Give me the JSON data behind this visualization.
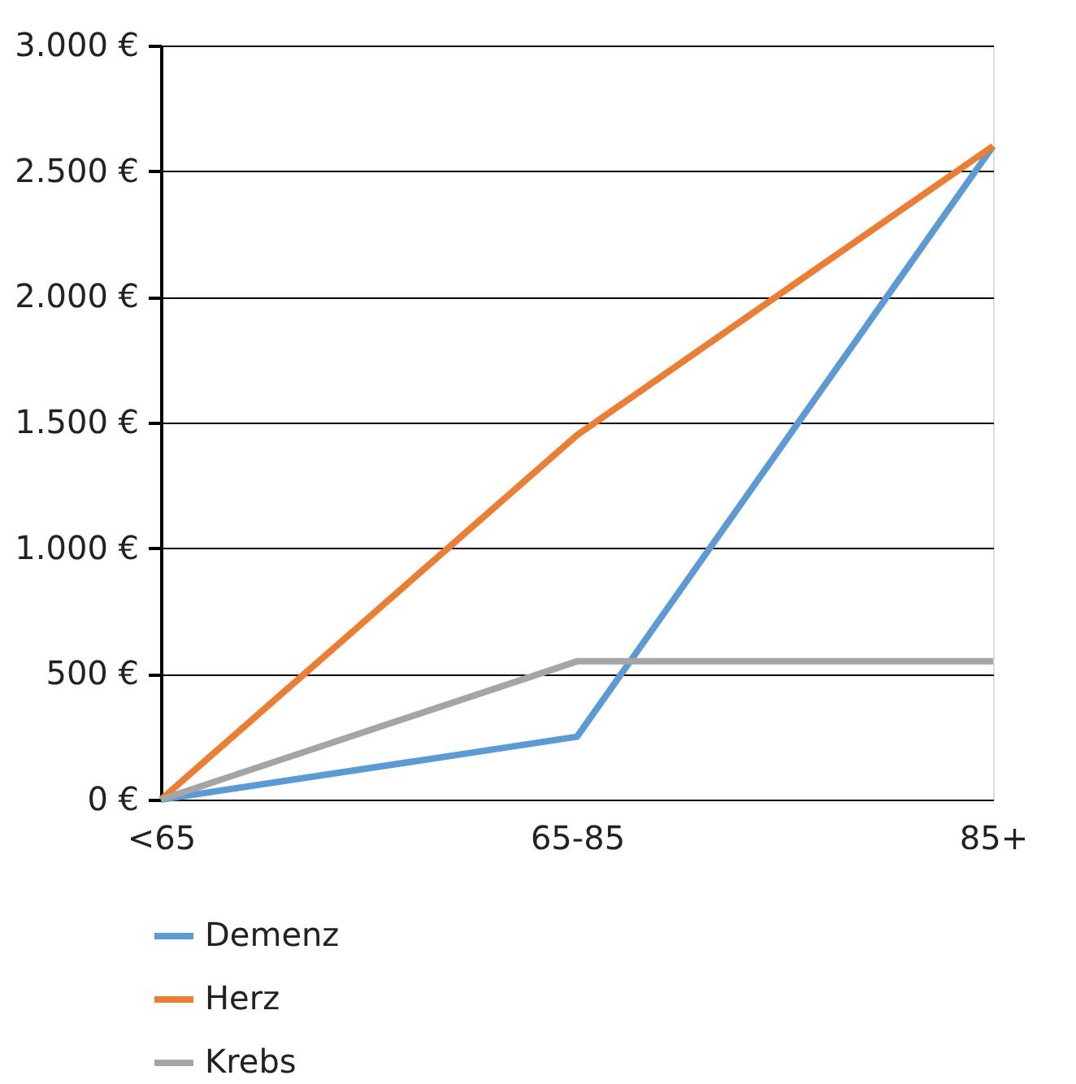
{
  "chart_data": {
    "type": "line",
    "categories": [
      "<65",
      "65-85",
      "85+"
    ],
    "series": [
      {
        "name": "Demenz",
        "color": "#5b9bd5",
        "values": [
          0,
          250,
          2600
        ]
      },
      {
        "name": "Herz",
        "color": "#ed7d31",
        "values": [
          0,
          1450,
          2600
        ]
      },
      {
        "name": "Krebs",
        "color": "#a5a5a5",
        "values": [
          0,
          550,
          550
        ]
      }
    ],
    "ylim": [
      0,
      3000
    ],
    "yticks": [
      {
        "value": 0,
        "label": "0 €"
      },
      {
        "value": 500,
        "label": "500 €"
      },
      {
        "value": 1000,
        "label": "1.000 €"
      },
      {
        "value": 1500,
        "label": "1.500 €"
      },
      {
        "value": 2000,
        "label": "2.000 €"
      },
      {
        "value": 2500,
        "label": "2.500 €"
      },
      {
        "value": 3000,
        "label": "3.000 €"
      }
    ],
    "grid": "y",
    "legend": "bottom left",
    "marker": "none",
    "line_style": "solid"
  }
}
